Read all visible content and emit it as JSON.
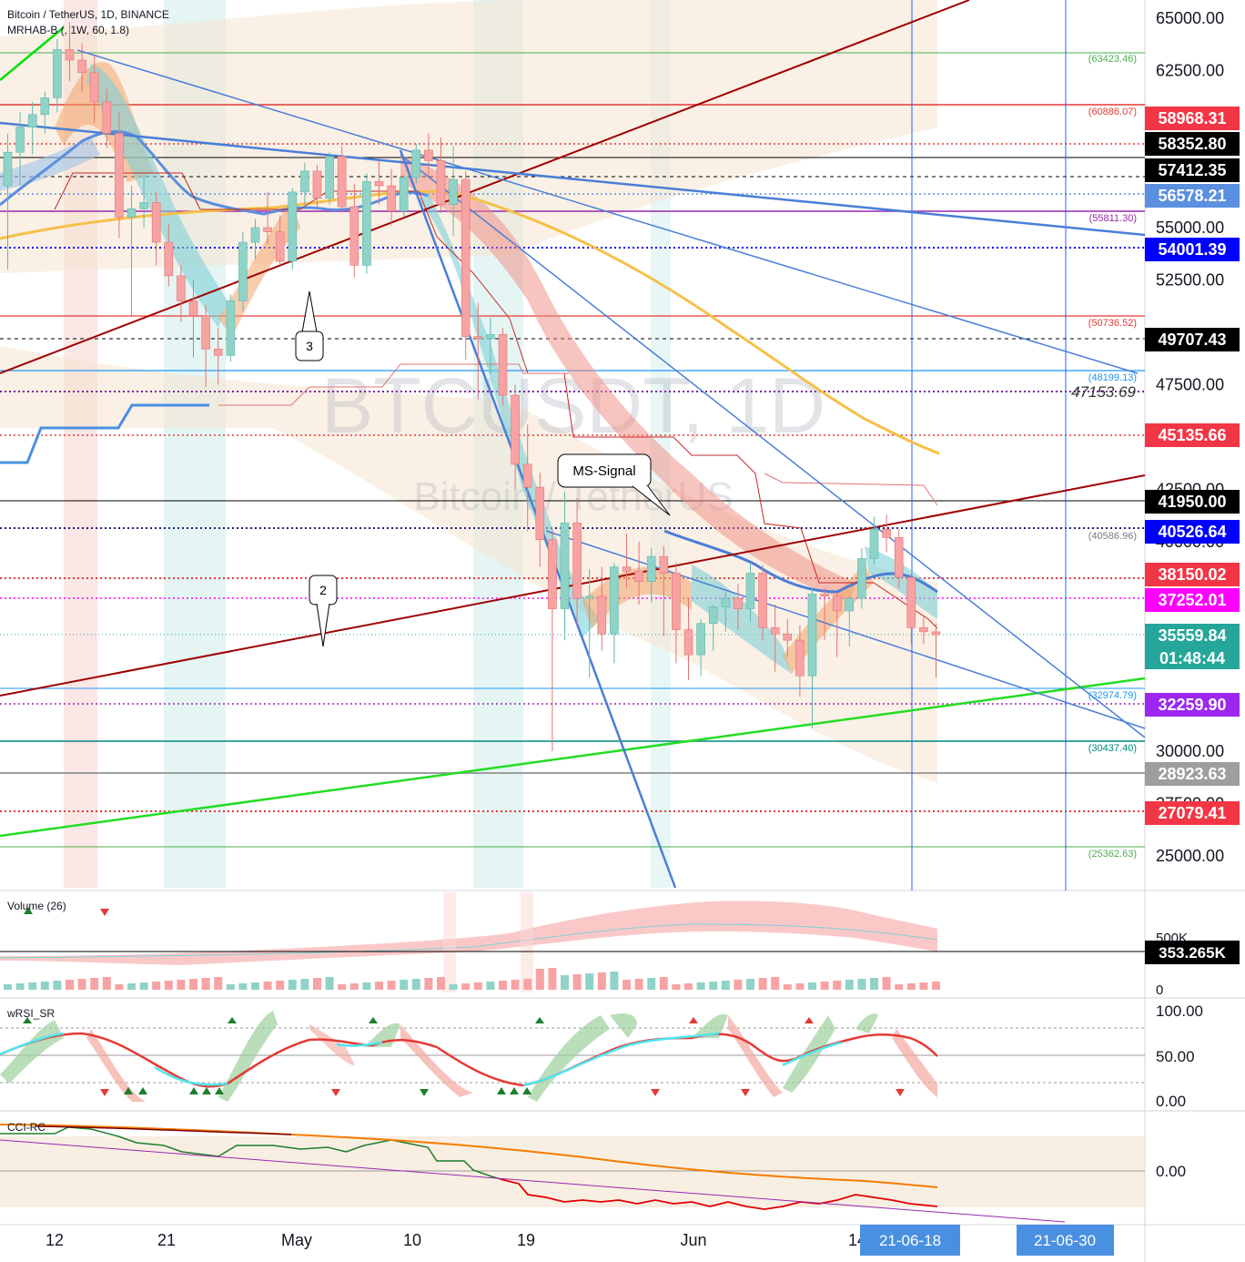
{
  "header": {
    "symbol_line": "Bitcoin / TetherUS, 1D, BINANCE",
    "indicator_line": "MRHAB-B (, 1W, 60, 1.8)"
  },
  "watermark": {
    "symbol": "BTCUSDT, 1D",
    "name": "Bitcoin / TetherUS"
  },
  "panes": {
    "volume": {
      "title": "Volume (26)",
      "current_label": "353.265K",
      "axis_labels": [
        "500K",
        "0"
      ]
    },
    "rsi": {
      "title": "wRSI_SR",
      "axis_labels": [
        "100.00",
        "50.00",
        "0.00"
      ]
    },
    "cci": {
      "title": "CCI-RC",
      "axis_labels": [
        "0.00"
      ]
    }
  },
  "annotations": {
    "callout_3": "3",
    "callout_2": "2",
    "ms_signal": "MS-Signal",
    "level_text": "47153.69"
  },
  "time_axis": {
    "labels": [
      "12",
      "21",
      "May",
      "10",
      "19",
      "Jun",
      "14"
    ],
    "highlight_labels": [
      "21-06-18",
      "21-06-30"
    ]
  },
  "chart_data": {
    "type": "candlestick",
    "y_axis_ticks": [
      "65000.00",
      "62500.00",
      "55000.00",
      "52500.00",
      "47500.00",
      "42500.00",
      "40000.00",
      "30000.00",
      "27500.00",
      "25000.00"
    ],
    "ylim": [
      22000,
      66000
    ],
    "price_tags": [
      {
        "value": "58968.31",
        "color": "#f23645"
      },
      {
        "value": "58352.80",
        "color": "#000000"
      },
      {
        "value": "57412.35",
        "color": "#000000"
      },
      {
        "value": "56578.21",
        "color": "#5b8fe0"
      },
      {
        "value": "54001.39",
        "color": "#0000ff"
      },
      {
        "value": "49707.43",
        "color": "#000000"
      },
      {
        "value": "45135.66",
        "color": "#f23645"
      },
      {
        "value": "41950.00",
        "color": "#000000"
      },
      {
        "value": "40526.64",
        "color": "#0000ff"
      },
      {
        "value": "38150.02",
        "color": "#f23645"
      },
      {
        "value": "37252.01",
        "color": "#ff00ff"
      },
      {
        "value": "35559.84",
        "color": "#26a69a"
      },
      {
        "value": "32259.90",
        "color": "#9c27f0"
      },
      {
        "value": "28923.63",
        "color": "#9e9e9e"
      },
      {
        "value": "27079.41",
        "color": "#f23645"
      }
    ],
    "countdown": "01:48:44",
    "level_labels": [
      {
        "value": "(63423.46)",
        "color": "#4caf50"
      },
      {
        "value": "(60886.07)",
        "color": "#e53935"
      },
      {
        "value": "(55811.30)",
        "color": "#9c27b0"
      },
      {
        "value": "(50736.52)",
        "color": "#e53935"
      },
      {
        "value": "(48199.13)",
        "color": "#2196f3"
      },
      {
        "value": "(40586.96)",
        "color": "#787b86"
      },
      {
        "value": "(32974.79)",
        "color": "#2196f3"
      },
      {
        "value": "(30437.40)",
        "color": "#00897b"
      },
      {
        "value": "(25362.63)",
        "color": "#4caf50"
      }
    ],
    "candles": [
      [
        57000,
        59500,
        53000,
        58600
      ],
      [
        58600,
        60500,
        57000,
        59800
      ],
      [
        59800,
        61000,
        58500,
        60400
      ],
      [
        60400,
        61500,
        59500,
        61200
      ],
      [
        61200,
        64000,
        60500,
        63500
      ],
      [
        63500,
        64800,
        62000,
        63000
      ],
      [
        63000,
        63800,
        61500,
        62400
      ],
      [
        62400,
        63200,
        60000,
        61000
      ],
      [
        61000,
        61600,
        58800,
        59500
      ],
      [
        59500,
        60500,
        54500,
        55500
      ],
      [
        55500,
        57000,
        50800,
        55900
      ],
      [
        55900,
        57500,
        55000,
        56200
      ],
      [
        56200,
        56700,
        53200,
        54300
      ],
      [
        54300,
        55200,
        52200,
        52700
      ],
      [
        52700,
        53200,
        50500,
        51500
      ],
      [
        51500,
        52500,
        48800,
        50800
      ],
      [
        50800,
        51300,
        47400,
        49200
      ],
      [
        49200,
        50200,
        47500,
        48900
      ],
      [
        48900,
        51800,
        48600,
        51500
      ],
      [
        51500,
        54800,
        51000,
        54300
      ],
      [
        54300,
        55400,
        53500,
        55000
      ],
      [
        55000,
        56700,
        54200,
        54800
      ],
      [
        54800,
        55600,
        53200,
        53400
      ],
      [
        53400,
        56900,
        53000,
        56700
      ],
      [
        56700,
        58100,
        56000,
        57700
      ],
      [
        57700,
        58000,
        55900,
        56400
      ],
      [
        56400,
        58600,
        56100,
        58400
      ],
      [
        58400,
        58900,
        55800,
        56000
      ],
      [
        56000,
        57100,
        52600,
        53200
      ],
      [
        53200,
        57600,
        52800,
        57200
      ],
      [
        57200,
        58200,
        56100,
        57000
      ],
      [
        57000,
        57800,
        55100,
        55800
      ],
      [
        55800,
        57500,
        55500,
        57400
      ],
      [
        57400,
        59000,
        57100,
        58700
      ],
      [
        58700,
        59500,
        57500,
        58200
      ],
      [
        58200,
        59300,
        55700,
        56100
      ],
      [
        56100,
        58900,
        54600,
        57300
      ],
      [
        57300,
        57700,
        48700,
        49800
      ],
      [
        49800,
        51400,
        46800,
        49700
      ],
      [
        49700,
        50700,
        48000,
        49900
      ],
      [
        49900,
        50200,
        46500,
        47000
      ],
      [
        47000,
        47500,
        42500,
        43700
      ],
      [
        43700,
        45600,
        40500,
        42600
      ],
      [
        42600,
        43300,
        38800,
        40100
      ],
      [
        40100,
        40600,
        30000,
        36800
      ],
      [
        36800,
        42400,
        35300,
        40900
      ],
      [
        40900,
        42100,
        36000,
        37300
      ],
      [
        37300,
        38700,
        33500,
        37400
      ],
      [
        37400,
        38800,
        34800,
        35600
      ],
      [
        35600,
        39000,
        34200,
        38800
      ],
      [
        38800,
        40400,
        37800,
        38600
      ],
      [
        38600,
        40000,
        37000,
        38100
      ],
      [
        38100,
        39700,
        37100,
        39300
      ],
      [
        39300,
        39800,
        35500,
        38500
      ],
      [
        38500,
        39000,
        34200,
        35800
      ],
      [
        35800,
        37300,
        33400,
        34600
      ],
      [
        34600,
        36300,
        33600,
        36100
      ],
      [
        36100,
        37000,
        34800,
        36900
      ],
      [
        36900,
        37600,
        35700,
        37300
      ],
      [
        37300,
        38000,
        35800,
        36800
      ],
      [
        36800,
        39000,
        36200,
        38500
      ],
      [
        38500,
        38900,
        35300,
        35900
      ],
      [
        35900,
        37000,
        33800,
        35600
      ],
      [
        35600,
        36300,
        34500,
        35300
      ],
      [
        35300,
        36000,
        32600,
        33600
      ],
      [
        33600,
        37800,
        31100,
        37500
      ],
      [
        37500,
        37800,
        35300,
        37400
      ],
      [
        37400,
        37600,
        34500,
        36700
      ],
      [
        36700,
        37400,
        35000,
        37300
      ],
      [
        37300,
        39700,
        36800,
        39200
      ],
      [
        39200,
        41200,
        38900,
        40600
      ],
      [
        40600,
        41300,
        39500,
        40200
      ],
      [
        40200,
        40600,
        37800,
        38300
      ],
      [
        38300,
        38500,
        35100,
        35900
      ],
      [
        35900,
        36400,
        35100,
        35700
      ],
      [
        35700,
        36100,
        33500,
        35560
      ]
    ],
    "lines_note": "Bollinger-style bands, moving averages, trendlines and horizontal support/resistance levels"
  }
}
